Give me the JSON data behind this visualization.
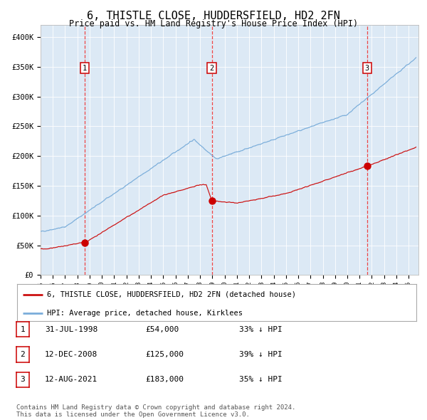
{
  "title": "6, THISTLE CLOSE, HUDDERSFIELD, HD2 2FN",
  "subtitle": "Price paid vs. HM Land Registry's House Price Index (HPI)",
  "plot_bg_color": "#dce9f5",
  "ylim": [
    0,
    420000
  ],
  "yticks": [
    0,
    50000,
    100000,
    150000,
    200000,
    250000,
    300000,
    350000,
    400000
  ],
  "ytick_labels": [
    "£0",
    "£50K",
    "£100K",
    "£150K",
    "£200K",
    "£250K",
    "£300K",
    "£350K",
    "£400K"
  ],
  "sale_dates_num": [
    1998.58,
    2008.95,
    2021.62
  ],
  "sale_prices": [
    54000,
    125000,
    183000
  ],
  "sale_labels": [
    "1",
    "2",
    "3"
  ],
  "vline_color": "#ee3333",
  "marker_color": "#cc0000",
  "hpi_line_color": "#7aadda",
  "price_line_color": "#cc1111",
  "legend_items": [
    "6, THISTLE CLOSE, HUDDERSFIELD, HD2 2FN (detached house)",
    "HPI: Average price, detached house, Kirklees"
  ],
  "table_rows": [
    [
      "1",
      "31-JUL-1998",
      "£54,000",
      "33% ↓ HPI"
    ],
    [
      "2",
      "12-DEC-2008",
      "£125,000",
      "39% ↓ HPI"
    ],
    [
      "3",
      "12-AUG-2021",
      "£183,000",
      "35% ↓ HPI"
    ]
  ],
  "footer_text": "Contains HM Land Registry data © Crown copyright and database right 2024.\nThis data is licensed under the Open Government Licence v3.0.",
  "xlim_start": 1995.0,
  "xlim_end": 2025.8
}
